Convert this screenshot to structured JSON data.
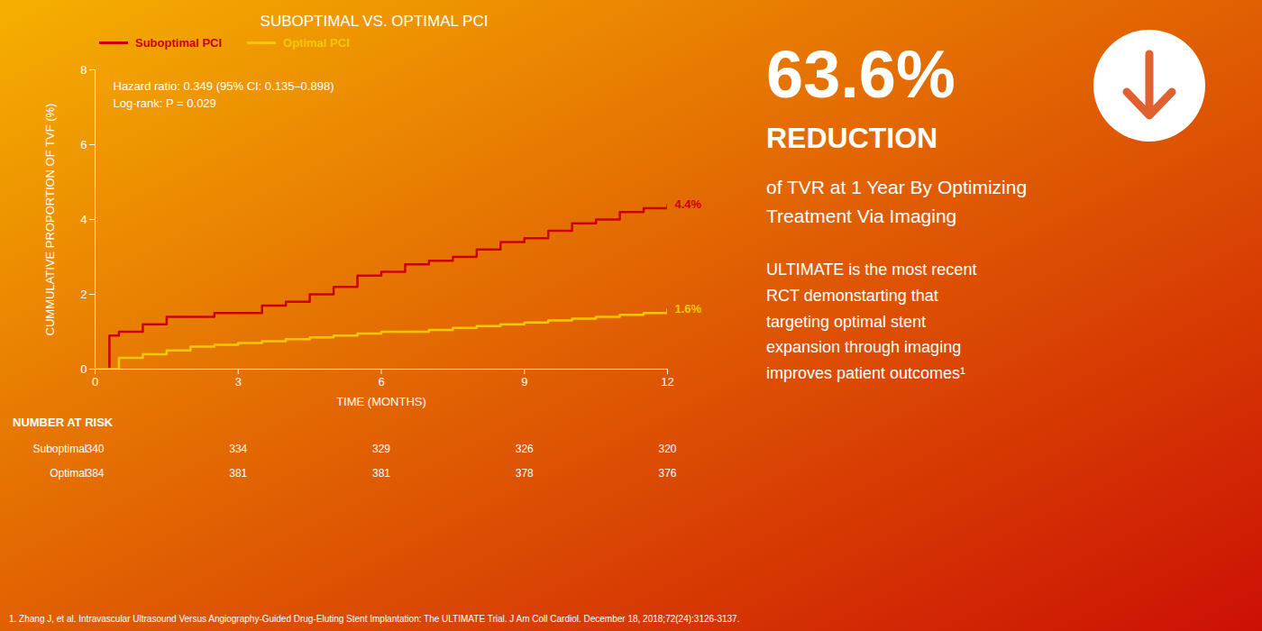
{
  "chart_data": {
    "type": "step",
    "title": "SUBOPTIMAL VS. OPTIMAL PCI",
    "xlabel": "TIME (MONTHS)",
    "ylabel": "CUMMULATIVE PROPORTION OF TVF (%)",
    "xlim": [
      0,
      12
    ],
    "ylim": [
      0,
      8
    ],
    "xticks": [
      0,
      3,
      6,
      9,
      12
    ],
    "yticks": [
      0,
      2,
      4,
      6,
      8
    ],
    "series": [
      {
        "name": "Suboptimal PCI",
        "color": "#cc0000",
        "end_label": "4.4%",
        "x": [
          0,
          0.3,
          0.5,
          1.0,
          1.5,
          2.0,
          2.5,
          3.0,
          3.5,
          4.0,
          4.5,
          5.0,
          5.5,
          6.0,
          6.5,
          7.0,
          7.5,
          8.0,
          8.5,
          9.0,
          9.5,
          10.0,
          10.5,
          11.0,
          11.5,
          12.0
        ],
        "values": [
          0,
          0.9,
          1.0,
          1.2,
          1.4,
          1.4,
          1.5,
          1.5,
          1.7,
          1.8,
          2.0,
          2.2,
          2.5,
          2.6,
          2.8,
          2.9,
          3.0,
          3.2,
          3.4,
          3.5,
          3.7,
          3.9,
          4.0,
          4.2,
          4.3,
          4.4
        ]
      },
      {
        "name": "Optimal PCI",
        "color": "#f5c800",
        "end_label": "1.6%",
        "x": [
          0,
          0.5,
          1.0,
          1.5,
          2.0,
          2.5,
          3.0,
          3.5,
          4.0,
          4.5,
          5.0,
          5.5,
          6.0,
          6.5,
          7.0,
          7.5,
          8.0,
          8.5,
          9.0,
          9.5,
          10.0,
          10.5,
          11.0,
          11.5,
          12.0
        ],
        "values": [
          0,
          0.3,
          0.4,
          0.5,
          0.6,
          0.65,
          0.7,
          0.75,
          0.8,
          0.85,
          0.9,
          0.95,
          1.0,
          1.0,
          1.05,
          1.1,
          1.15,
          1.2,
          1.25,
          1.3,
          1.35,
          1.4,
          1.45,
          1.5,
          1.6
        ]
      }
    ],
    "annotations": [
      "Hazard ratio: 0.349 (95% CI: 0.135–0.898)",
      "Log-rank: P = 0.029"
    ],
    "number_at_risk": {
      "title": "NUMBER AT RISK",
      "times": [
        0,
        3,
        6,
        9,
        12
      ],
      "rows": [
        {
          "name": "Suboptimal",
          "values": [
            340,
            334,
            329,
            326,
            320
          ]
        },
        {
          "name": "Optimal",
          "values": [
            384,
            381,
            381,
            378,
            376
          ]
        }
      ]
    },
    "callout": {
      "big_number": "63.6%",
      "headline": "REDUCTION",
      "subheadline": "of TVR at 1 Year By Optimizing\nTreatment Via Imaging",
      "body": "ULTIMATE is the most recent\nRCT demonstarting that\ntargeting optimal stent\nexpansion through imaging\nimproves patient outcomes¹",
      "icon_color": "#e06030"
    },
    "footnote": "1.  Zhang J, et al. Intravascular Ultrasound Versus Angiography-Guided Drug-Eluting Stent Implantation: The ULTIMATE Trial. J Am Coll Cardiol. December 18, 2018;72(24):3126-3137."
  }
}
